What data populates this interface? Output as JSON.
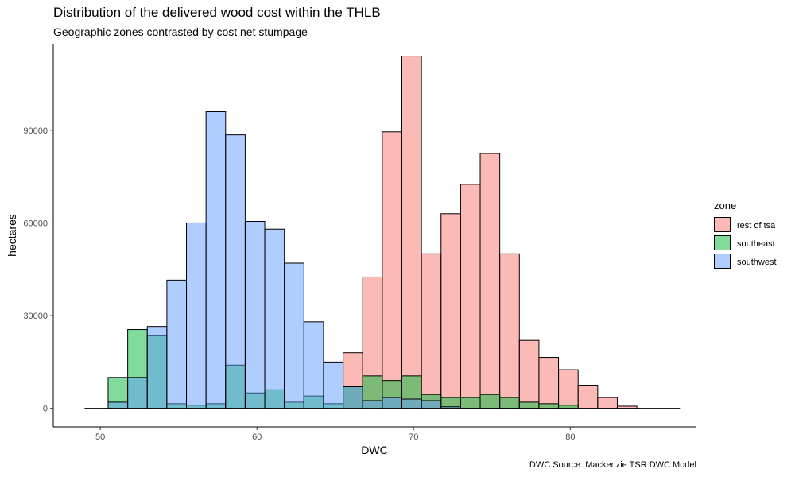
{
  "chart_data": {
    "type": "bar",
    "title": "Distribution of the delivered wood cost within the THLB",
    "subtitle": "Geographic zones contrasted by cost net stumpage",
    "caption": "DWC Source: Mackenzie TSR DWC Model",
    "xlabel": "DWC",
    "ylabel": "hectares",
    "xlim": [
      47,
      88
    ],
    "ylim": [
      -6000,
      118000
    ],
    "xticks": [
      50,
      60,
      70,
      80
    ],
    "yticks": [
      0,
      30000,
      60000,
      90000
    ],
    "ytick_labels": [
      "0",
      "30000",
      "60000",
      "90000"
    ],
    "xtick_labels": [
      "50",
      "60",
      "70",
      "80"
    ],
    "bin_width": 1.25,
    "baseline_range": [
      49.0,
      87.0
    ],
    "legend": {
      "title": "zone",
      "position": "right"
    },
    "series": [
      {
        "name": "rest of tsa",
        "color": "#F8766D",
        "bins_left": [
          65.5,
          66.75,
          68.0,
          69.25,
          70.5,
          71.75,
          73.0,
          74.25,
          75.5,
          76.75,
          78.0,
          79.25,
          80.5,
          81.75,
          83.0
        ],
        "values": [
          18000,
          42500,
          89500,
          114000,
          50000,
          63000,
          72500,
          82500,
          50000,
          22000,
          16500,
          12500,
          7500,
          3500,
          700
        ]
      },
      {
        "name": "southeast",
        "color": "#00BA38",
        "bins_left": [
          50.5,
          51.75,
          53.0,
          54.25,
          55.5,
          56.75,
          58.0,
          59.25,
          60.5,
          61.75,
          63.0,
          64.25,
          65.5,
          66.75,
          68.0,
          69.25,
          70.5,
          71.75,
          73.0,
          74.25,
          75.5,
          76.75,
          78.0,
          79.25,
          80.5
        ],
        "values": [
          10000,
          25500,
          23500,
          1500,
          1000,
          1500,
          14000,
          5000,
          6000,
          2000,
          4000,
          1500,
          7000,
          10500,
          9000,
          10500,
          4500,
          3500,
          3500,
          4500,
          3500,
          2000,
          1500,
          1000,
          0
        ]
      },
      {
        "name": "southwest",
        "color": "#619CFF",
        "bins_left": [
          50.5,
          51.75,
          53.0,
          54.25,
          55.5,
          56.75,
          58.0,
          59.25,
          60.5,
          61.75,
          63.0,
          64.25,
          65.5,
          66.75,
          68.0,
          69.25,
          70.5,
          71.75,
          73.0,
          74.25,
          75.5,
          76.75,
          78.0,
          79.25,
          80.5
        ],
        "values": [
          2000,
          10000,
          26500,
          41500,
          60000,
          96000,
          88500,
          60500,
          58000,
          47000,
          28000,
          15000,
          7000,
          2500,
          3500,
          3000,
          2500,
          500,
          0,
          0,
          0,
          0,
          0,
          0,
          0
        ]
      }
    ]
  }
}
